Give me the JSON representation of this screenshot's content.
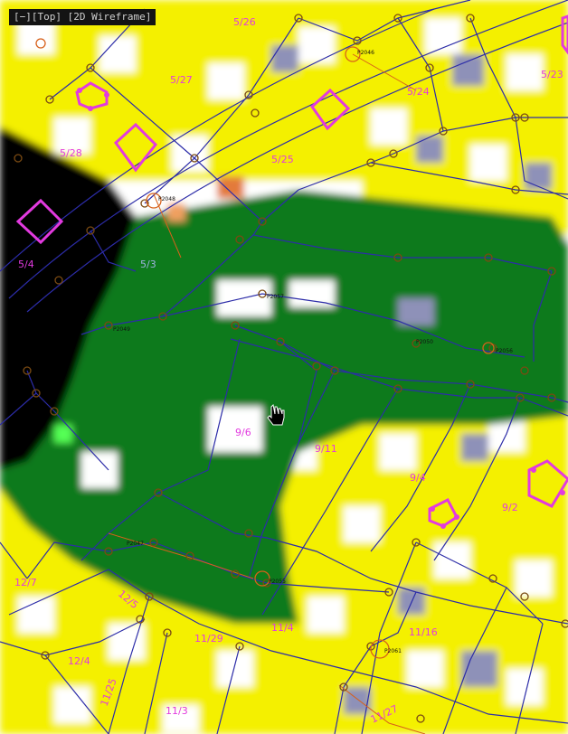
{
  "viewport": {
    "title_prefix": "[−][Top]",
    "title_rest": "[2D Wireframe]"
  },
  "colors": {
    "yellow": "#f4f000",
    "green": "#0b7a1a",
    "white": "#ffffff",
    "black": "#000000",
    "line_blue": "#2c2ca8",
    "node_ring": "#7a4a12",
    "parcel_magenta": "#e23adf",
    "orange_line": "#d7611a"
  },
  "parcel_labels": [
    {
      "id": "p-5-26",
      "text": "5/26"
    },
    {
      "id": "p-5-27",
      "text": "5/27"
    },
    {
      "id": "p-5-24",
      "text": "5/24"
    },
    {
      "id": "p-5-23",
      "text": "5/23"
    },
    {
      "id": "p-5-28",
      "text": "5/28"
    },
    {
      "id": "p-5-25",
      "text": "5/25"
    },
    {
      "id": "p-5-4",
      "text": "5/4"
    },
    {
      "id": "p-5-3",
      "text": "5/3"
    },
    {
      "id": "p-9-6",
      "text": "9/6"
    },
    {
      "id": "p-9-11",
      "text": "9/11"
    },
    {
      "id": "p-9-4",
      "text": "9/4"
    },
    {
      "id": "p-9-2",
      "text": "9/2"
    },
    {
      "id": "p-12-7",
      "text": "12/7"
    },
    {
      "id": "p-12-5",
      "text": "12/5"
    },
    {
      "id": "p-12-4",
      "text": "12/4"
    },
    {
      "id": "p-11-29",
      "text": "11/29"
    },
    {
      "id": "p-11-4",
      "text": "11/4"
    },
    {
      "id": "p-11-16",
      "text": "11/16"
    },
    {
      "id": "p-11-25",
      "text": "11/25"
    },
    {
      "id": "p-11-3",
      "text": "11/3"
    },
    {
      "id": "p-11-27",
      "text": "11/27"
    }
  ],
  "point_labels": [
    {
      "id": "pt-1",
      "text": "P2048"
    },
    {
      "id": "pt-2",
      "text": "P2046"
    },
    {
      "id": "pt-3",
      "text": "P2057"
    },
    {
      "id": "pt-4",
      "text": "P2049"
    },
    {
      "id": "pt-5",
      "text": "P2050"
    },
    {
      "id": "pt-6",
      "text": "P2056"
    },
    {
      "id": "pt-7",
      "text": "P2047"
    },
    {
      "id": "pt-8",
      "text": "P2055"
    },
    {
      "id": "pt-9",
      "text": "P2061"
    }
  ],
  "cursor": {
    "icon": "hand-cursor-icon"
  }
}
